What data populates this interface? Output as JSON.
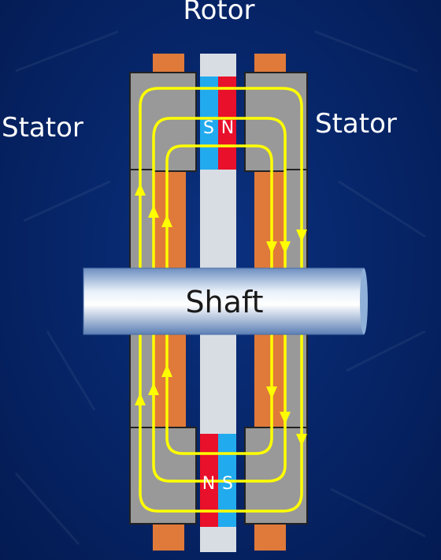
{
  "labels": {
    "rotor": "Rotor",
    "stator_left": "Stator",
    "stator_right": "Stator",
    "shaft": "Shaft"
  },
  "magnets": {
    "top_left_pole": "S",
    "top_right_pole": "N",
    "bottom_left_pole": "N",
    "bottom_right_pole": "S"
  },
  "colors": {
    "background": "#062466",
    "flux_lines": "#ffff00",
    "north_pole": "#e8102a",
    "south_pole": "#22aaee",
    "coil": "#e07a3a",
    "stator_core": "#9a9a9a",
    "rotor_disc": "#d8dde4"
  }
}
